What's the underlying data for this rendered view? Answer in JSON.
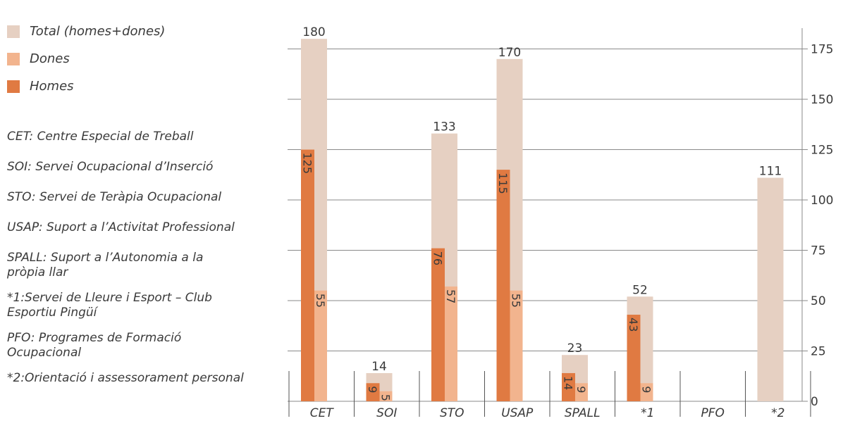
{
  "legend": [
    {
      "label": "Total (homes+dones)",
      "color": "#e6d0c2"
    },
    {
      "label": "Dones",
      "color": "#f2b48e"
    },
    {
      "label": "Homes",
      "color": "#e07a42"
    }
  ],
  "notes": [
    "CET: Centre Especial de Treball",
    "SOI: Servei Ocupacional d’Inserció",
    "STO: Servei de Teràpia Ocupacional",
    "USAP: Suport a l’Activitat Professional",
    "SPALL: Suport a l’Autonomia a la pròpia llar",
    "*1:Servei de Lleure i Esport – Club Esportiu Pingüí",
    "PFO: Programes de Formació Ocupacional",
    "*2:Orientació i assessorament personal"
  ],
  "chart_data": {
    "type": "bar",
    "categories": [
      "CET",
      "SOI",
      "STO",
      "USAP",
      "SPALL",
      "*1",
      "PFO",
      "*2"
    ],
    "series": [
      {
        "name": "Total (homes+dones)",
        "values": [
          180,
          14,
          133,
          170,
          23,
          52,
          null,
          111
        ]
      },
      {
        "name": "Homes",
        "values": [
          125,
          9,
          76,
          115,
          14,
          43,
          null,
          null
        ]
      },
      {
        "name": "Dones",
        "values": [
          55,
          5,
          57,
          55,
          9,
          9,
          null,
          null
        ]
      }
    ],
    "ylim": [
      0,
      185
    ],
    "yticks": [
      0,
      25,
      50,
      75,
      100,
      125,
      150,
      175
    ],
    "y_axis_side": "right",
    "grid": true,
    "legend_position": "top-left",
    "colors": {
      "total": "#e6d0c2",
      "homes": "#e07a42",
      "dones": "#f2b48e",
      "grid": "#8a8a8a"
    }
  }
}
